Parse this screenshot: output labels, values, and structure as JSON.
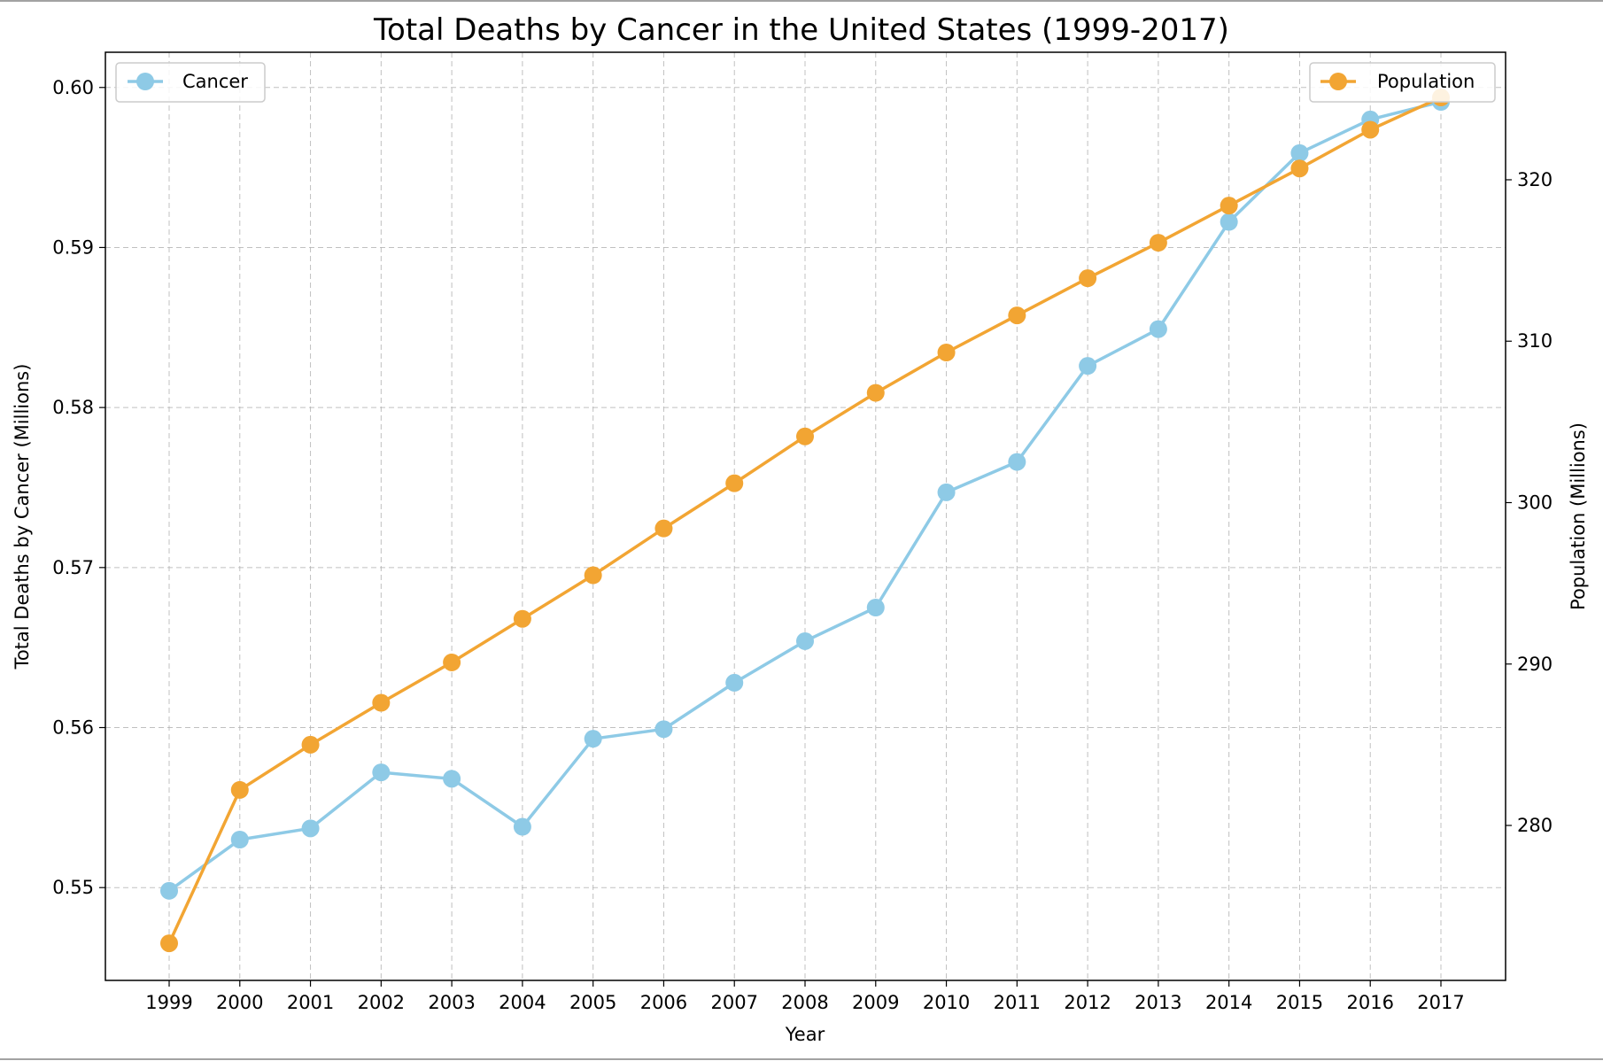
{
  "chart_data": {
    "type": "line",
    "title": "Total Deaths by Cancer in the United States (1999-2017)",
    "xlabel": "Year",
    "ylabel_left": "Total Deaths by Cancer (Millions)",
    "ylabel_right": "Population (Millions)",
    "x": [
      1999,
      2000,
      2001,
      2002,
      2003,
      2004,
      2005,
      2006,
      2007,
      2008,
      2009,
      2010,
      2011,
      2012,
      2013,
      2014,
      2015,
      2016,
      2017
    ],
    "x_tick_labels": [
      "1999",
      "2000",
      "2001",
      "2002",
      "2003",
      "2004",
      "2005",
      "2006",
      "2007",
      "2008",
      "2009",
      "2010",
      "2011",
      "2012",
      "2013",
      "2014",
      "2015",
      "2016",
      "2017"
    ],
    "y_left_ticks": [
      0.55,
      0.56,
      0.57,
      0.58,
      0.59,
      0.6
    ],
    "y_left_tick_labels": [
      "0.55",
      "0.56",
      "0.57",
      "0.58",
      "0.59",
      "0.60"
    ],
    "y_left_range": [
      0.5442,
      0.6022
    ],
    "y_right_ticks": [
      280,
      290,
      300,
      310,
      320
    ],
    "y_right_tick_labels": [
      "280",
      "290",
      "300",
      "310",
      "320"
    ],
    "y_right_range": [
      270.4,
      327.9
    ],
    "grid": true,
    "series": [
      {
        "name": "Cancer",
        "axis": "left",
        "color": "#8ecae6",
        "legend_position": "upper left",
        "values": [
          0.5498,
          0.553,
          0.5537,
          0.5572,
          0.5568,
          0.5538,
          0.5593,
          0.5599,
          0.5628,
          0.5654,
          0.5675,
          0.5747,
          0.5766,
          0.5826,
          0.5849,
          0.5916,
          0.5959,
          0.598,
          0.5991
        ]
      },
      {
        "name": "Population",
        "axis": "right",
        "color": "#f2a533",
        "legend_position": "upper right",
        "values": [
          272.7,
          282.2,
          285.0,
          287.6,
          290.1,
          292.8,
          295.5,
          298.4,
          301.2,
          304.1,
          306.8,
          309.3,
          311.6,
          313.9,
          316.1,
          318.4,
          320.7,
          323.1,
          325.1
        ]
      }
    ]
  }
}
